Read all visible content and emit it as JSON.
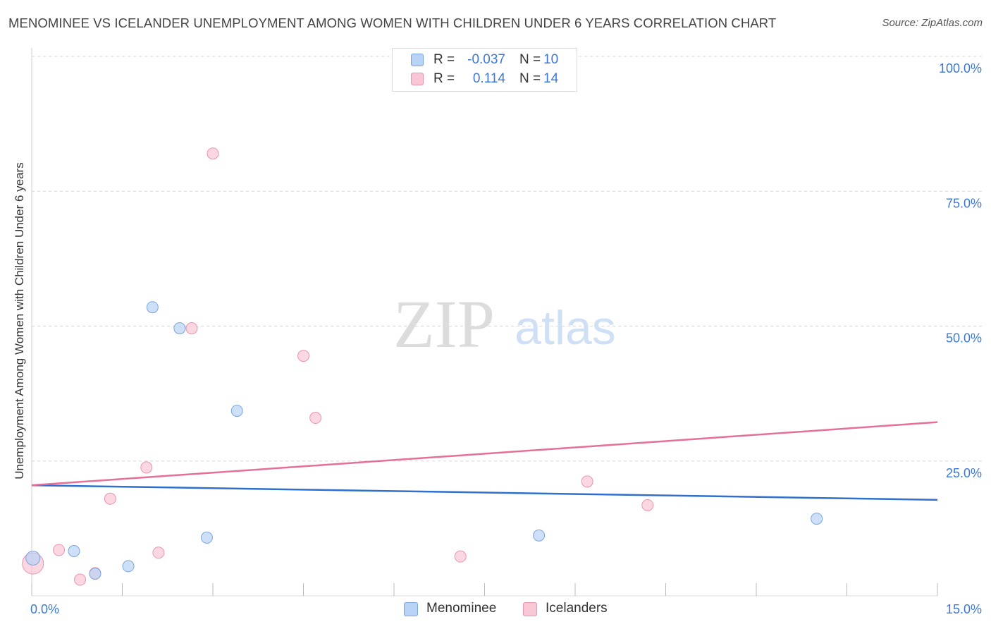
{
  "header": {
    "title": "MENOMINEE VS ICELANDER UNEMPLOYMENT AMONG WOMEN WITH CHILDREN UNDER 6 YEARS CORRELATION CHART",
    "source": "Source: ZipAtlas.com"
  },
  "colors": {
    "menominee_fill": "#b8d3f5",
    "menominee_stroke": "#7aa6e0",
    "menominee_line": "#2f6fce",
    "icelanders_fill": "#f9c6d5",
    "icelanders_stroke": "#eb94ae",
    "icelanders_line": "#e56f96",
    "tick_label": "#3b78d8",
    "grid": "#d8d8d8"
  },
  "stats_legend": {
    "rows": [
      {
        "r_label": "R =",
        "r_value": "-0.037",
        "n_label": "N =",
        "n_value": "10"
      },
      {
        "r_label": "R =",
        "r_value": "0.114",
        "n_label": "N =",
        "n_value": "14"
      }
    ]
  },
  "watermark": {
    "zip": "ZIP",
    "atlas": "atlas"
  },
  "chart_data": {
    "type": "scatter",
    "title": "MENOMINEE VS ICELANDER UNEMPLOYMENT AMONG WOMEN WITH CHILDREN UNDER 6 YEARS CORRELATION CHART",
    "xlabel": "",
    "ylabel": "Unemployment Among Women with Children Under 6 years",
    "xlim": [
      0,
      15
    ],
    "ylim": [
      0,
      100
    ],
    "x_tick_labels": [
      {
        "value": 0,
        "label": "0.0%"
      },
      {
        "value": 15,
        "label": "15.0%"
      }
    ],
    "y_tick_labels": [
      {
        "value": 25,
        "label": "25.0%"
      },
      {
        "value": 50,
        "label": "50.0%"
      },
      {
        "value": 75,
        "label": "75.0%"
      },
      {
        "value": 100,
        "label": "100.0%"
      }
    ],
    "legend": [
      "Menominee",
      "Icelanders"
    ],
    "series": [
      {
        "name": "Menominee",
        "points": [
          {
            "x": 0.02,
            "y": 7.0,
            "big": true
          },
          {
            "x": 0.7,
            "y": 8.3
          },
          {
            "x": 1.05,
            "y": 4.1
          },
          {
            "x": 1.6,
            "y": 5.5
          },
          {
            "x": 2.0,
            "y": 53.5
          },
          {
            "x": 2.45,
            "y": 49.6
          },
          {
            "x": 2.9,
            "y": 10.8
          },
          {
            "x": 3.4,
            "y": 34.3
          },
          {
            "x": 8.4,
            "y": 11.2
          },
          {
            "x": 13.0,
            "y": 14.3
          }
        ],
        "trend": {
          "x0": 0,
          "y0": 20.5,
          "x1": 15,
          "y1": 17.8
        }
      },
      {
        "name": "Icelanders",
        "points": [
          {
            "x": 0.02,
            "y": 6.0,
            "big": true
          },
          {
            "x": 0.45,
            "y": 8.5
          },
          {
            "x": 0.8,
            "y": 3.0
          },
          {
            "x": 1.05,
            "y": 4.2
          },
          {
            "x": 1.3,
            "y": 18.0
          },
          {
            "x": 1.9,
            "y": 23.8
          },
          {
            "x": 2.1,
            "y": 8.0
          },
          {
            "x": 2.65,
            "y": 49.6
          },
          {
            "x": 3.0,
            "y": 82.0
          },
          {
            "x": 4.5,
            "y": 44.5
          },
          {
            "x": 4.7,
            "y": 33.0
          },
          {
            "x": 7.1,
            "y": 7.3
          },
          {
            "x": 9.2,
            "y": 21.2
          },
          {
            "x": 10.2,
            "y": 16.8
          }
        ],
        "trend": {
          "x0": 0,
          "y0": 20.5,
          "x1": 15,
          "y1": 32.2
        }
      }
    ]
  }
}
